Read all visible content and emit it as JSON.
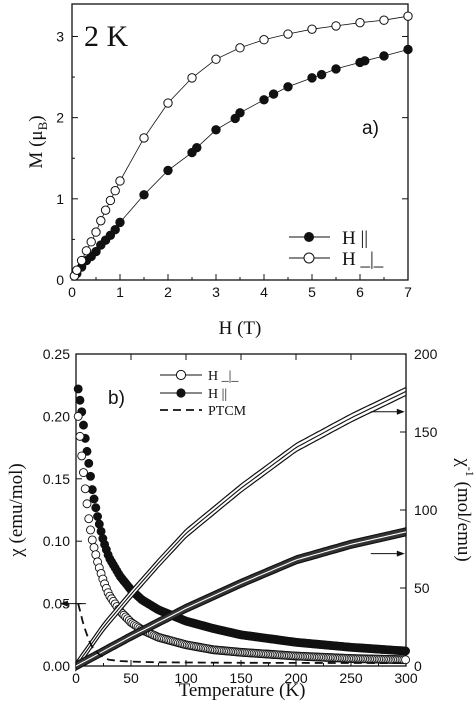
{
  "chart_data": [
    {
      "type": "scatter",
      "panel_label": "a)",
      "annotation": "2 K",
      "xlabel": "H (T)",
      "ylabel_main": "M (μ",
      "ylabel_sub": "B",
      "ylabel_tail": ")",
      "xlim": [
        0,
        7
      ],
      "ylim": [
        0,
        3.4
      ],
      "xticks": [
        "0",
        "1",
        "2",
        "3",
        "4",
        "5",
        "6",
        "7"
      ],
      "yticks": [
        "0",
        "1",
        "2",
        "3"
      ],
      "legend_position": "right",
      "series": [
        {
          "name": "H ||",
          "marker": "filled-circle",
          "x": [
            0.05,
            0.1,
            0.2,
            0.3,
            0.4,
            0.5,
            0.6,
            0.7,
            0.8,
            0.9,
            1.0,
            1.5,
            2.0,
            2.5,
            2.6,
            3.0,
            3.4,
            3.5,
            4.0,
            4.2,
            4.5,
            5.0,
            5.2,
            5.5,
            6.0,
            6.1,
            6.5,
            7.0
          ],
          "y": [
            0.05,
            0.08,
            0.16,
            0.24,
            0.29,
            0.35,
            0.43,
            0.49,
            0.55,
            0.62,
            0.71,
            1.05,
            1.35,
            1.57,
            1.63,
            1.85,
            1.99,
            2.06,
            2.22,
            2.29,
            2.38,
            2.49,
            2.53,
            2.6,
            2.68,
            2.7,
            2.76,
            2.84
          ]
        },
        {
          "name": "H _|_",
          "marker": "open-circle",
          "x": [
            0.05,
            0.1,
            0.2,
            0.3,
            0.4,
            0.5,
            0.6,
            0.7,
            0.8,
            0.9,
            1.0,
            1.5,
            2.0,
            2.5,
            3.0,
            3.5,
            4.0,
            4.5,
            5.0,
            5.5,
            6.0,
            6.5,
            7.0
          ],
          "y": [
            0.05,
            0.12,
            0.24,
            0.36,
            0.47,
            0.59,
            0.73,
            0.86,
            0.98,
            1.1,
            1.22,
            1.75,
            2.18,
            2.49,
            2.72,
            2.86,
            2.96,
            3.03,
            3.09,
            3.13,
            3.17,
            3.2,
            3.25
          ]
        }
      ]
    },
    {
      "type": "scatter",
      "panel_label": "b)",
      "xlabel": "Temperature (K)",
      "ylabel_left": "χ (emu/mol)",
      "ylabel_right_main": "χ",
      "ylabel_right_sup": "-1",
      "ylabel_right_tail": " (mol/emu)",
      "xlim": [
        0,
        300
      ],
      "ylim_left": [
        0,
        0.25
      ],
      "ylim_right": [
        0,
        200
      ],
      "xticks": [
        "0",
        "50",
        "100",
        "150",
        "200",
        "250",
        "300"
      ],
      "yticks_left": [
        "0.00",
        "0.05",
        "0.10",
        "0.15",
        "0.20",
        "0.25"
      ],
      "yticks_right": [
        "0",
        "50",
        "100",
        "150",
        "200"
      ],
      "legend_position": "top-left",
      "legend": [
        {
          "name": "H _|_",
          "marker": "open-circle"
        },
        {
          "name": "H ||",
          "marker": "filled-circle"
        },
        {
          "name": "PTCM",
          "marker": "dashed-line"
        }
      ],
      "susceptibility": {
        "H_perp": {
          "T": [
            2,
            5,
            8,
            10,
            12,
            15,
            20,
            25,
            30,
            40,
            50,
            60,
            75,
            100,
            125,
            150,
            200,
            250,
            300
          ],
          "chi": [
            0.2,
            0.17,
            0.145,
            0.13,
            0.115,
            0.1,
            0.082,
            0.068,
            0.057,
            0.044,
            0.035,
            0.029,
            0.023,
            0.017,
            0.013,
            0.011,
            0.008,
            0.006,
            0.005
          ]
        },
        "H_par": {
          "T": [
            2,
            5,
            8,
            10,
            12,
            15,
            20,
            25,
            30,
            40,
            50,
            60,
            75,
            100,
            125,
            150,
            200,
            250,
            300
          ],
          "chi": [
            0.222,
            0.205,
            0.185,
            0.172,
            0.16,
            0.14,
            0.118,
            0.1,
            0.087,
            0.072,
            0.061,
            0.053,
            0.045,
            0.036,
            0.03,
            0.025,
            0.019,
            0.015,
            0.012
          ]
        },
        "PTCM": {
          "T": [
            2,
            4,
            6,
            8,
            10,
            12,
            15,
            20,
            25,
            30,
            40,
            50,
            75,
            100,
            150,
            200,
            250,
            300
          ],
          "chi": [
            0.05,
            0.043,
            0.036,
            0.03,
            0.025,
            0.02,
            0.015,
            0.01,
            0.007,
            0.005,
            0.004,
            0.0035,
            0.003,
            0.0028,
            0.0026,
            0.0025,
            0.0024,
            0.0023
          ]
        }
      },
      "inverse_susceptibility": {
        "H_perp": {
          "T": [
            0,
            25,
            50,
            75,
            100,
            150,
            200,
            250,
            300
          ],
          "inv_chi": [
            0,
            25,
            46,
            66,
            85,
            114,
            140,
            159,
            176
          ]
        },
        "H_par": {
          "T": [
            0,
            50,
            100,
            150,
            200,
            250,
            300
          ],
          "inv_chi": [
            0,
            19,
            37,
            53,
            68,
            78,
            86
          ]
        }
      },
      "arrows": [
        {
          "at_T": 268,
          "inv_chi": 163,
          "points_to": "right-axis"
        },
        {
          "at_T": 268,
          "inv_chi": 72,
          "points_to": "right-axis"
        },
        {
          "at_T": 9,
          "chi": 0.05,
          "points_to": "left-axis"
        }
      ]
    }
  ]
}
